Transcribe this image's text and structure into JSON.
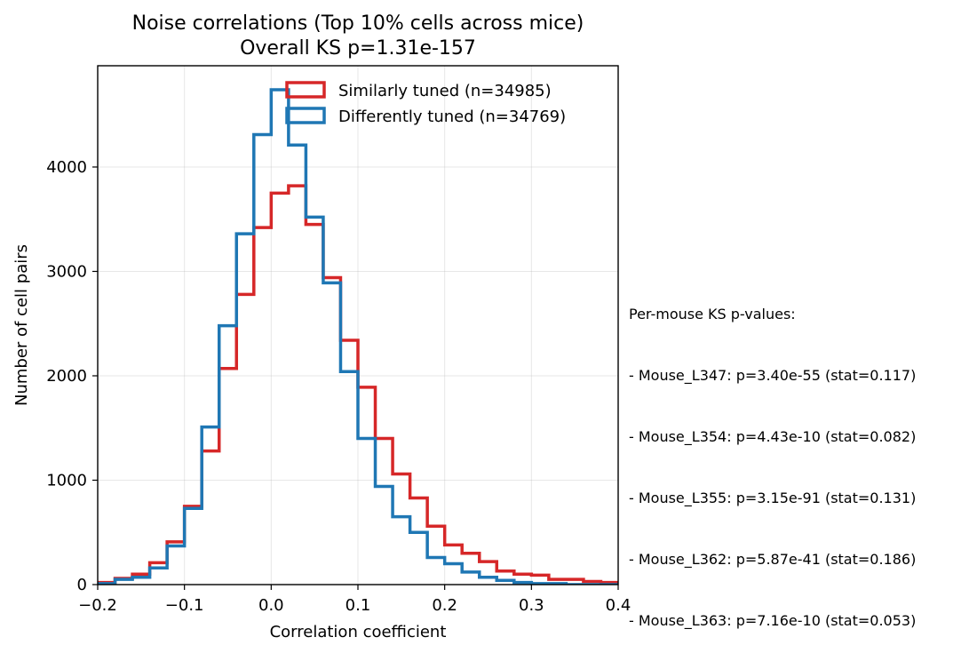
{
  "chart_data": {
    "type": "histogram",
    "title": "Noise correlations (Top 10% cells across mice)",
    "subtitle": "Overall KS p=1.31e-157",
    "xlabel": "Correlation coefficient",
    "ylabel": "Number of cell pairs",
    "xlim": [
      -0.2,
      0.4
    ],
    "ylim": [
      0,
      4970
    ],
    "xticks": [
      -0.2,
      -0.1,
      0.0,
      0.1,
      0.2,
      0.3,
      0.4
    ],
    "xtick_labels": [
      "−0.2",
      "−0.1",
      "0.0",
      "0.1",
      "0.2",
      "0.3",
      "0.4"
    ],
    "yticks": [
      0,
      1000,
      2000,
      3000,
      4000
    ],
    "ytick_labels": [
      "0",
      "1000",
      "2000",
      "3000",
      "4000"
    ],
    "grid": true,
    "legend_position": "top-right",
    "bin_edges": [
      -0.2,
      -0.18,
      -0.16,
      -0.14,
      -0.12,
      -0.1,
      -0.08,
      -0.06,
      -0.04,
      -0.02,
      0.0,
      0.02,
      0.04,
      0.06,
      0.08,
      0.1,
      0.12,
      0.14,
      0.16,
      0.18,
      0.2,
      0.22,
      0.24,
      0.26,
      0.28,
      0.3,
      0.32,
      0.34,
      0.36,
      0.38,
      0.4
    ],
    "series": [
      {
        "name": "Similarly tuned (n=34985)",
        "color": "#d62728",
        "values": [
          20,
          60,
          100,
          210,
          410,
          750,
          1280,
          2070,
          2780,
          3420,
          3750,
          3820,
          3450,
          2940,
          2340,
          1890,
          1400,
          1060,
          830,
          560,
          380,
          300,
          220,
          130,
          100,
          90,
          50,
          50,
          30,
          20
        ]
      },
      {
        "name": "Differently tuned (n=34769)",
        "color": "#1f77b4",
        "values": [
          10,
          50,
          70,
          160,
          370,
          730,
          1510,
          2480,
          3360,
          4310,
          4740,
          4210,
          3520,
          2890,
          2040,
          1400,
          940,
          650,
          500,
          260,
          200,
          120,
          70,
          40,
          20,
          10,
          10,
          0,
          0,
          0
        ]
      }
    ]
  },
  "annotation": {
    "lines": [
      "Per-mouse KS p-values:",
      "- Mouse_L347: p=3.40e-55 (stat=0.117)",
      "- Mouse_L354: p=4.43e-10 (stat=0.082)",
      "- Mouse_L355: p=3.15e-91 (stat=0.131)",
      "- Mouse_L362: p=5.87e-41 (stat=0.186)",
      "- Mouse_L363: p=7.16e-10 (stat=0.053)"
    ]
  }
}
